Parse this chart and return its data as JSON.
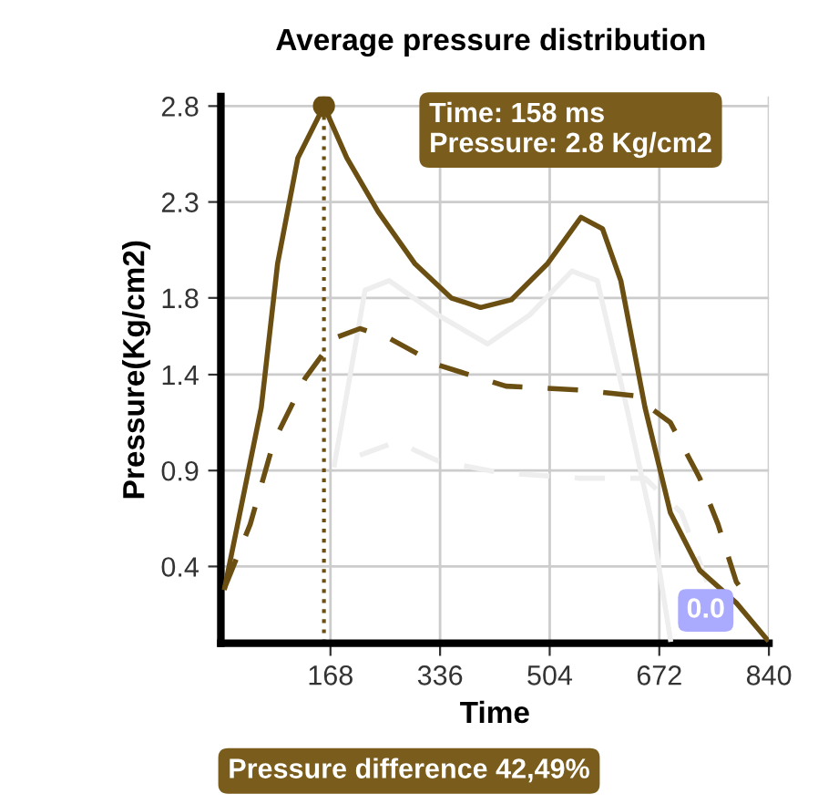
{
  "chart_data": {
    "type": "line",
    "title": "Average pressure distribution",
    "xlabel": "Time",
    "ylabel": "Pressure(Kg/cm2)",
    "xlim": [
      0,
      840
    ],
    "xticks": [
      168,
      336,
      504,
      672,
      840
    ],
    "ylim": [
      0,
      2.85
    ],
    "yticks": [
      0.4,
      0.9,
      1.4,
      1.8,
      2.3,
      2.8
    ],
    "grid": true,
    "series": [
      {
        "color": "#eeeeee",
        "line_style": "solid",
        "x": [
          174,
          221,
          258,
          333,
          409,
          473,
          538,
          577,
          622,
          661,
          689
        ],
        "values": [
          0.93,
          1.84,
          1.89,
          1.71,
          1.56,
          1.71,
          1.94,
          1.89,
          1.23,
          0.62,
          0.02
        ]
      },
      {
        "color": "#eeeeee",
        "line_style": "dashed",
        "x": [
          213,
          269,
          333,
          426,
          549,
          650,
          706,
          745
        ],
        "values": [
          0.98,
          1.05,
          0.95,
          0.89,
          0.86,
          0.86,
          0.68,
          0.32
        ]
      },
      {
        "color": "#6b4f12",
        "line_style": "solid",
        "x": [
          6,
          62,
          87,
          118,
          158,
          193,
          241,
          297,
          353,
          398,
          445,
          501,
          552,
          585,
          613,
          650,
          689,
          734,
          790,
          837
        ],
        "values": [
          0.29,
          1.23,
          1.98,
          2.53,
          2.8,
          2.53,
          2.25,
          1.98,
          1.8,
          1.75,
          1.79,
          1.98,
          2.22,
          2.16,
          1.89,
          1.23,
          0.68,
          0.38,
          0.21,
          0.02
        ]
      },
      {
        "color": "#6b4f12",
        "line_style": "dashed",
        "x": [
          6,
          45,
          81,
          129,
          174,
          213,
          258,
          333,
          437,
          549,
          633,
          689,
          734,
          762,
          790,
          815
        ],
        "values": [
          0.29,
          0.62,
          1.05,
          1.38,
          1.59,
          1.64,
          1.59,
          1.45,
          1.34,
          1.32,
          1.29,
          1.15,
          0.86,
          0.62,
          0.32,
          0.2
        ]
      },
      {
        "type": "scatter",
        "color": "#6b4f12",
        "marker": "circle",
        "x": [
          158
        ],
        "values": [
          2.8
        ]
      }
    ],
    "ref_lines": [
      {
        "axis": "x",
        "value": 158,
        "color": "#6b4f12",
        "line_style": "dotted"
      }
    ],
    "annotations": [
      "Time: 158 ms\nPressure: 2.8 Kg/cm2",
      "Pressure difference 42,49%",
      "0.0"
    ]
  }
}
